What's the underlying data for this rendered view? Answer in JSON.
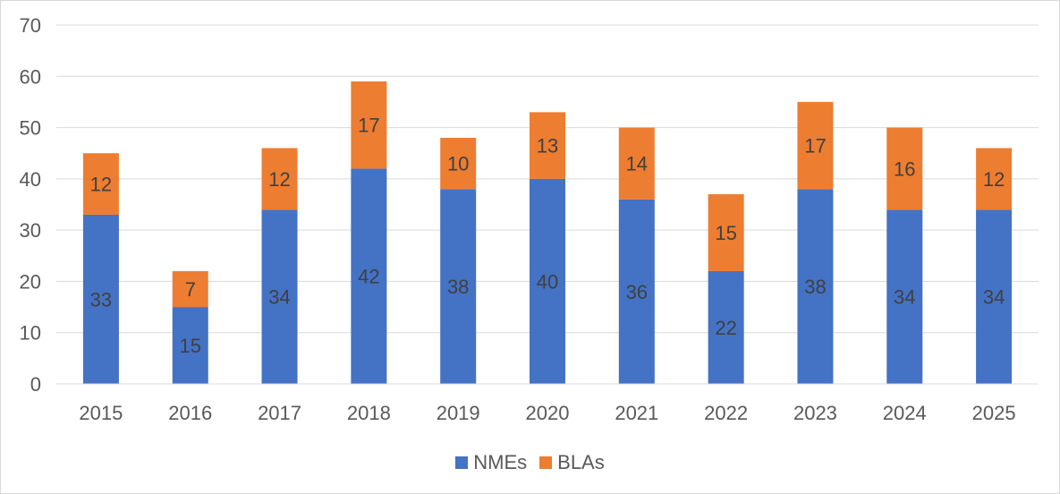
{
  "chart_data": {
    "type": "bar",
    "stacked": true,
    "title": "",
    "xlabel": "",
    "ylabel": "",
    "categories": [
      "2015",
      "2016",
      "2017",
      "2018",
      "2019",
      "2020",
      "2021",
      "2022",
      "2023",
      "2024",
      "2025"
    ],
    "series": [
      {
        "name": "NMEs",
        "color": "#4472C4",
        "values": [
          33,
          15,
          34,
          42,
          38,
          40,
          36,
          22,
          38,
          34,
          34
        ]
      },
      {
        "name": "BLAs",
        "color": "#ED7D31",
        "values": [
          12,
          7,
          12,
          17,
          10,
          13,
          14,
          15,
          17,
          16,
          12
        ]
      }
    ],
    "ylim": [
      0,
      70
    ],
    "yticks": [
      0,
      10,
      20,
      30,
      40,
      50,
      60,
      70
    ],
    "grid": true,
    "legend_position": "bottom"
  }
}
